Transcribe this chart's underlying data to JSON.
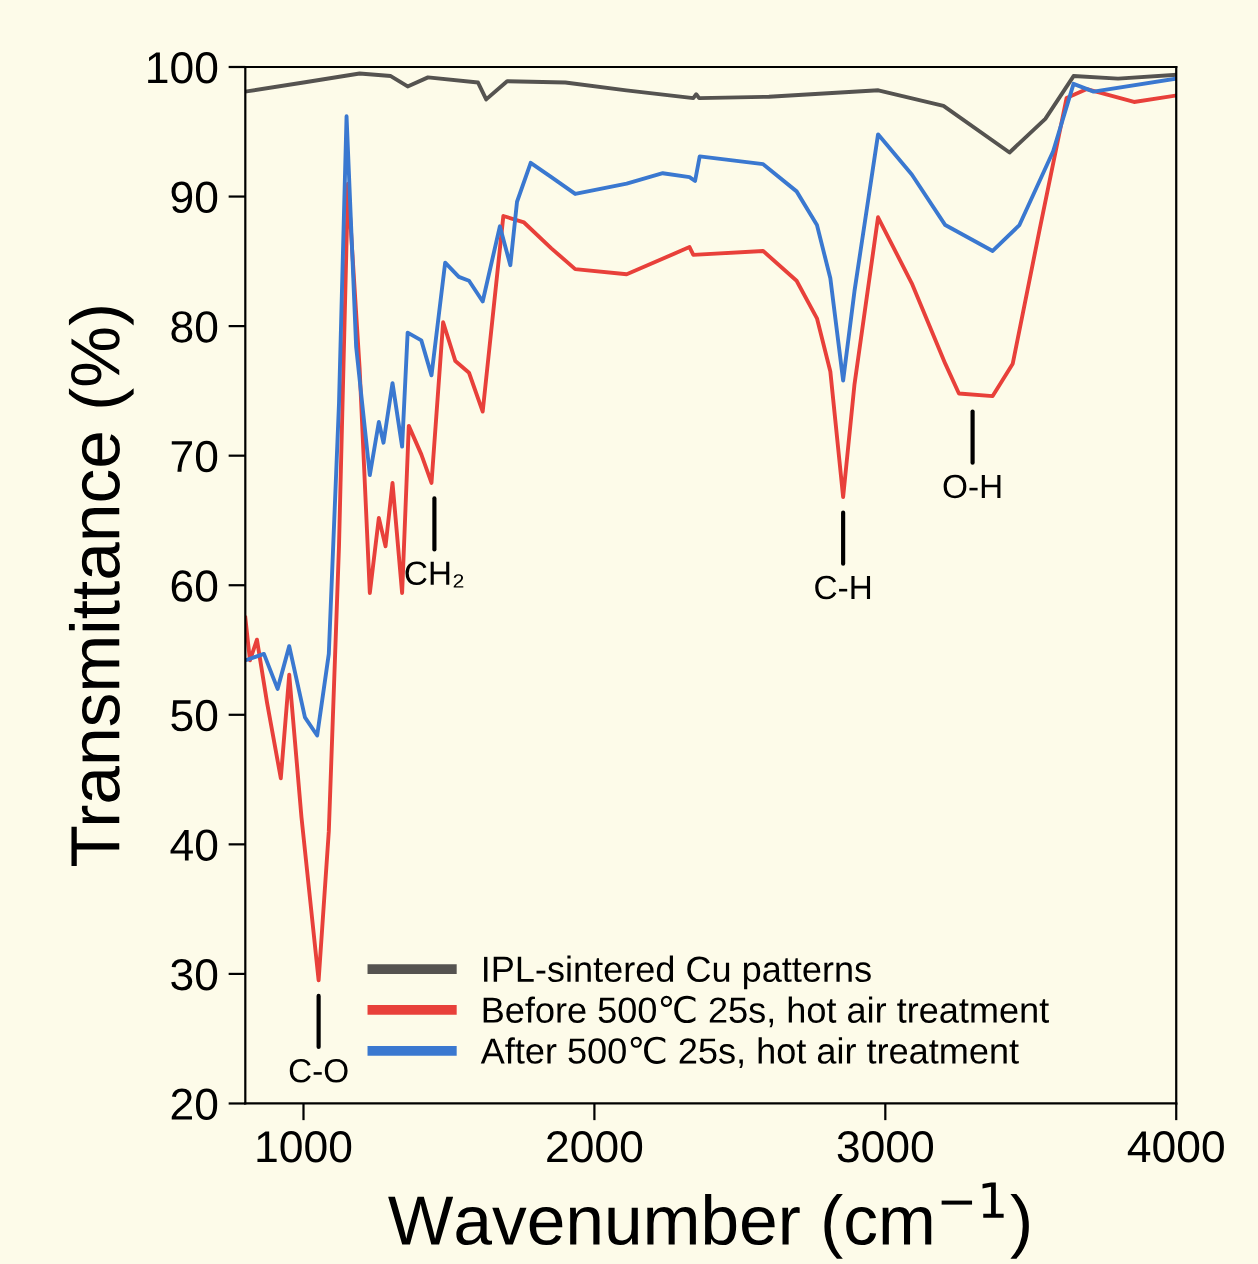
{
  "chart_data": {
    "type": "line",
    "xlabel": "Wavenumber (cm$^{−1}$)",
    "ylabel": "Transmittance (%)",
    "xlim": [
      800,
      4000
    ],
    "ylim": [
      20,
      100
    ],
    "xticks": [
      1000,
      2000,
      3000,
      4000
    ],
    "yticks": [
      20,
      30,
      40,
      50,
      60,
      70,
      80,
      90,
      100
    ],
    "grid": false,
    "legend": "bottom",
    "marker": "none",
    "line_style": "solid",
    "series": [
      {
        "name": "IPL-sintered Cu patterns",
        "color": "#555350",
        "x": [
          800,
          1000,
          1193,
          1300,
          1358,
          1428,
          1600,
          1628,
          1700,
          1900,
          2110,
          2340,
          2350,
          2360,
          2600,
          2976,
          3200,
          3427,
          3550,
          3647,
          3800,
          4000
        ],
        "values": [
          98.1,
          98.8,
          99.5,
          99.3,
          98.5,
          99.2,
          98.8,
          97.5,
          98.9,
          98.8,
          98.2,
          97.6,
          97.9,
          97.6,
          97.7,
          98.2,
          97.0,
          93.4,
          96.0,
          99.3,
          99.1,
          99.4
        ]
      },
      {
        "name": "Before 500℃ 25s, hot air treatment",
        "color": "#e8403a",
        "x": [
          800,
          816,
          840,
          875,
          922,
          951,
          993,
          1052,
          1087,
          1122,
          1153,
          1193,
          1228,
          1259,
          1282,
          1306,
          1339,
          1362,
          1405,
          1440,
          1480,
          1522,
          1569,
          1616,
          1687,
          1758,
          1852,
          1934,
          2111,
          2327,
          2340,
          2580,
          2695,
          2765,
          2811,
          2855,
          2894,
          2975,
          3091,
          3206,
          3253,
          3369,
          3438,
          3530,
          3623,
          3693,
          3855,
          4000
        ],
        "values": [
          57.5,
          54.2,
          55.8,
          50.9,
          45.1,
          53.1,
          42.1,
          29.5,
          41.0,
          63.0,
          91.0,
          76.7,
          59.4,
          65.2,
          63.0,
          67.9,
          59.4,
          72.3,
          70.1,
          67.9,
          80.3,
          77.3,
          76.4,
          73.4,
          88.5,
          88.0,
          86.0,
          84.4,
          84.0,
          86.1,
          85.5,
          85.8,
          83.5,
          80.6,
          76.5,
          66.8,
          75.5,
          88.4,
          83.3,
          77.1,
          74.8,
          74.6,
          77.1,
          87.4,
          97.6,
          98.3,
          97.3,
          97.8
        ]
      },
      {
        "name": "After 500℃ 25s, hot air treatment",
        "color": "#3a78d0",
        "x": [
          800,
          864,
          911,
          951,
          1005,
          1047,
          1087,
          1122,
          1148,
          1181,
          1228,
          1259,
          1275,
          1306,
          1339,
          1358,
          1405,
          1440,
          1487,
          1534,
          1569,
          1616,
          1675,
          1711,
          1734,
          1781,
          1852,
          1934,
          2111,
          2235,
          2327,
          2346,
          2362,
          2580,
          2695,
          2765,
          2811,
          2855,
          2894,
          2975,
          3091,
          3206,
          3369,
          3461,
          3577,
          3647,
          3716,
          4000
        ],
        "values": [
          54.2,
          54.7,
          52.0,
          55.3,
          49.8,
          48.4,
          54.7,
          74.0,
          96.2,
          78.4,
          68.5,
          72.6,
          71.0,
          75.6,
          70.7,
          79.5,
          78.9,
          76.2,
          84.9,
          83.8,
          83.5,
          81.9,
          87.7,
          84.7,
          89.6,
          92.6,
          91.5,
          90.2,
          91.0,
          91.8,
          91.5,
          91.2,
          93.1,
          92.5,
          90.4,
          87.8,
          83.7,
          75.8,
          82.7,
          94.8,
          91.7,
          87.8,
          85.8,
          87.8,
          93.5,
          98.7,
          98.1,
          99.1
        ]
      }
    ],
    "annotations": [
      {
        "text": "C-O",
        "x": 1052,
        "y": 29.5
      },
      {
        "text": "CH₂",
        "x": 1450,
        "y": 67.9
      },
      {
        "text": "C-H",
        "x": 2855,
        "y": 66.8
      },
      {
        "text": "O-H",
        "x": 3300,
        "y": 74.6
      }
    ]
  }
}
